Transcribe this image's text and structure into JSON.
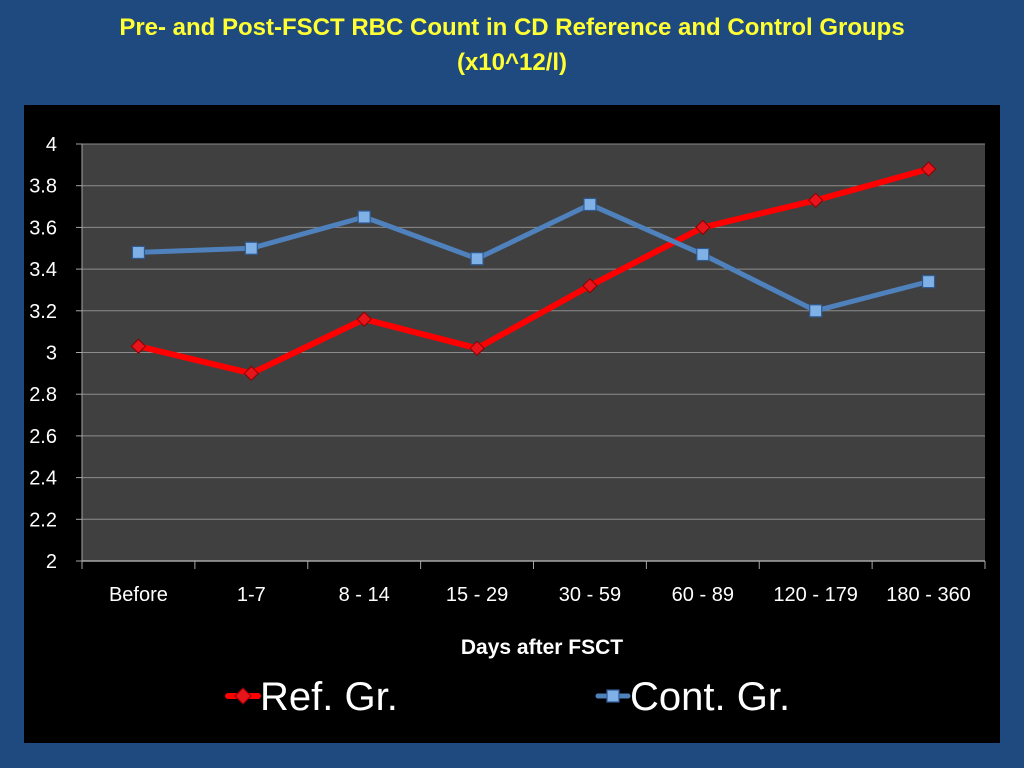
{
  "slide": {
    "title_line1": "Pre- and Post-FSCT RBC Count in CD Reference and Control Groups",
    "title_line2": "(x10^12/l)"
  },
  "chart_data": {
    "type": "line",
    "title": "Pre- and Post-FSCT RBC Count in CD Reference and Control Groups (x10^12/l)",
    "xlabel": "Days after FSCT",
    "ylabel": "",
    "categories": [
      "Before",
      "1-7",
      "8 - 14",
      "15 - 29",
      "30 - 59",
      "60 - 89",
      "120 - 179",
      "180 - 360"
    ],
    "ylim": [
      2,
      4
    ],
    "yticks": [
      "2",
      "2.2",
      "2.4",
      "2.6",
      "2.8",
      "3",
      "3.2",
      "3.4",
      "3.6",
      "3.8",
      "4"
    ],
    "grid": true,
    "legend_position": "bottom",
    "series": [
      {
        "name": "Ref. Gr.",
        "values": [
          3.03,
          2.9,
          3.16,
          3.02,
          3.32,
          3.6,
          3.73,
          3.88
        ],
        "color": "#ff0000",
        "marker": "diamond"
      },
      {
        "name": "Cont. Gr.",
        "values": [
          3.48,
          3.5,
          3.65,
          3.45,
          3.71,
          3.47,
          3.2,
          3.34
        ],
        "color": "#4f81bd",
        "marker": "square"
      }
    ]
  },
  "colors": {
    "background": "#1f4a7f",
    "title": "#ffff33",
    "plot_area": "#404040",
    "grid": "#8c8c8c"
  }
}
